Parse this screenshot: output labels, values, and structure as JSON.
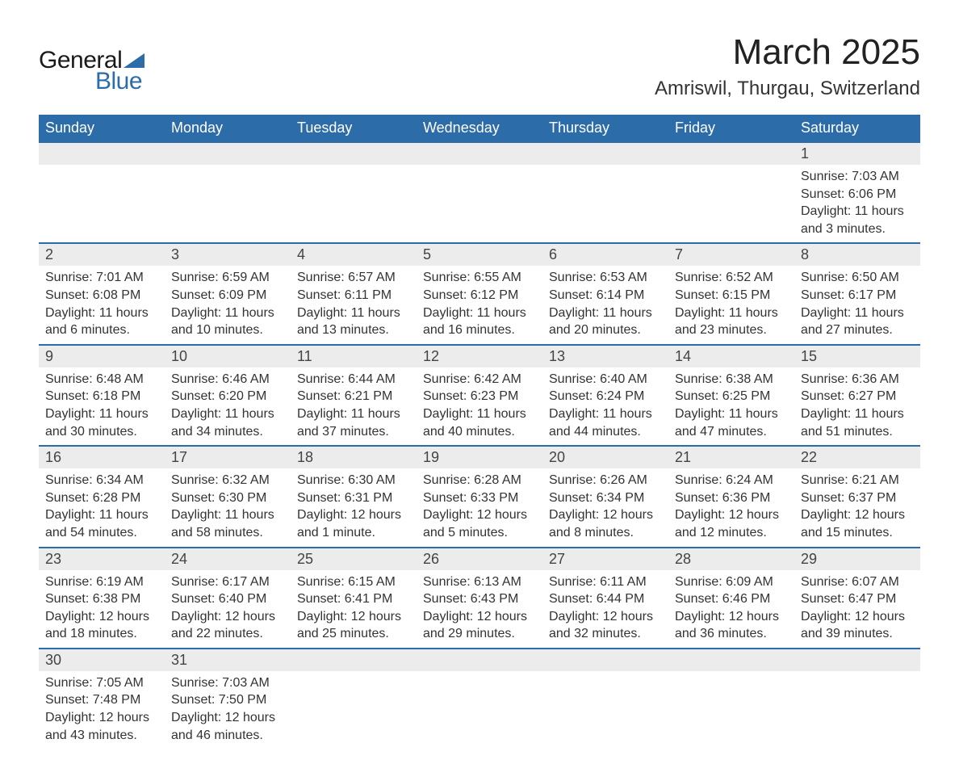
{
  "logo": {
    "text1": "General",
    "text2": "Blue",
    "shape_color": "#2c6ca8"
  },
  "title": "March 2025",
  "location": "Amriswil, Thurgau, Switzerland",
  "colors": {
    "header_bg": "#2c6ca8",
    "header_text": "#ffffff",
    "daynum_bg": "#ececec",
    "row_divider": "#2c6ca8",
    "body_text": "#333333"
  },
  "typography": {
    "title_fontsize": 44,
    "location_fontsize": 24,
    "dayname_fontsize": 18,
    "daynum_fontsize": 18,
    "detail_fontsize": 16
  },
  "daynames": [
    "Sunday",
    "Monday",
    "Tuesday",
    "Wednesday",
    "Thursday",
    "Friday",
    "Saturday"
  ],
  "weeks": [
    [
      null,
      null,
      null,
      null,
      null,
      null,
      {
        "n": "1",
        "sr": "Sunrise: 7:03 AM",
        "ss": "Sunset: 6:06 PM",
        "d1": "Daylight: 11 hours",
        "d2": "and 3 minutes."
      }
    ],
    [
      {
        "n": "2",
        "sr": "Sunrise: 7:01 AM",
        "ss": "Sunset: 6:08 PM",
        "d1": "Daylight: 11 hours",
        "d2": "and 6 minutes."
      },
      {
        "n": "3",
        "sr": "Sunrise: 6:59 AM",
        "ss": "Sunset: 6:09 PM",
        "d1": "Daylight: 11 hours",
        "d2": "and 10 minutes."
      },
      {
        "n": "4",
        "sr": "Sunrise: 6:57 AM",
        "ss": "Sunset: 6:11 PM",
        "d1": "Daylight: 11 hours",
        "d2": "and 13 minutes."
      },
      {
        "n": "5",
        "sr": "Sunrise: 6:55 AM",
        "ss": "Sunset: 6:12 PM",
        "d1": "Daylight: 11 hours",
        "d2": "and 16 minutes."
      },
      {
        "n": "6",
        "sr": "Sunrise: 6:53 AM",
        "ss": "Sunset: 6:14 PM",
        "d1": "Daylight: 11 hours",
        "d2": "and 20 minutes."
      },
      {
        "n": "7",
        "sr": "Sunrise: 6:52 AM",
        "ss": "Sunset: 6:15 PM",
        "d1": "Daylight: 11 hours",
        "d2": "and 23 minutes."
      },
      {
        "n": "8",
        "sr": "Sunrise: 6:50 AM",
        "ss": "Sunset: 6:17 PM",
        "d1": "Daylight: 11 hours",
        "d2": "and 27 minutes."
      }
    ],
    [
      {
        "n": "9",
        "sr": "Sunrise: 6:48 AM",
        "ss": "Sunset: 6:18 PM",
        "d1": "Daylight: 11 hours",
        "d2": "and 30 minutes."
      },
      {
        "n": "10",
        "sr": "Sunrise: 6:46 AM",
        "ss": "Sunset: 6:20 PM",
        "d1": "Daylight: 11 hours",
        "d2": "and 34 minutes."
      },
      {
        "n": "11",
        "sr": "Sunrise: 6:44 AM",
        "ss": "Sunset: 6:21 PM",
        "d1": "Daylight: 11 hours",
        "d2": "and 37 minutes."
      },
      {
        "n": "12",
        "sr": "Sunrise: 6:42 AM",
        "ss": "Sunset: 6:23 PM",
        "d1": "Daylight: 11 hours",
        "d2": "and 40 minutes."
      },
      {
        "n": "13",
        "sr": "Sunrise: 6:40 AM",
        "ss": "Sunset: 6:24 PM",
        "d1": "Daylight: 11 hours",
        "d2": "and 44 minutes."
      },
      {
        "n": "14",
        "sr": "Sunrise: 6:38 AM",
        "ss": "Sunset: 6:25 PM",
        "d1": "Daylight: 11 hours",
        "d2": "and 47 minutes."
      },
      {
        "n": "15",
        "sr": "Sunrise: 6:36 AM",
        "ss": "Sunset: 6:27 PM",
        "d1": "Daylight: 11 hours",
        "d2": "and 51 minutes."
      }
    ],
    [
      {
        "n": "16",
        "sr": "Sunrise: 6:34 AM",
        "ss": "Sunset: 6:28 PM",
        "d1": "Daylight: 11 hours",
        "d2": "and 54 minutes."
      },
      {
        "n": "17",
        "sr": "Sunrise: 6:32 AM",
        "ss": "Sunset: 6:30 PM",
        "d1": "Daylight: 11 hours",
        "d2": "and 58 minutes."
      },
      {
        "n": "18",
        "sr": "Sunrise: 6:30 AM",
        "ss": "Sunset: 6:31 PM",
        "d1": "Daylight: 12 hours",
        "d2": "and 1 minute."
      },
      {
        "n": "19",
        "sr": "Sunrise: 6:28 AM",
        "ss": "Sunset: 6:33 PM",
        "d1": "Daylight: 12 hours",
        "d2": "and 5 minutes."
      },
      {
        "n": "20",
        "sr": "Sunrise: 6:26 AM",
        "ss": "Sunset: 6:34 PM",
        "d1": "Daylight: 12 hours",
        "d2": "and 8 minutes."
      },
      {
        "n": "21",
        "sr": "Sunrise: 6:24 AM",
        "ss": "Sunset: 6:36 PM",
        "d1": "Daylight: 12 hours",
        "d2": "and 12 minutes."
      },
      {
        "n": "22",
        "sr": "Sunrise: 6:21 AM",
        "ss": "Sunset: 6:37 PM",
        "d1": "Daylight: 12 hours",
        "d2": "and 15 minutes."
      }
    ],
    [
      {
        "n": "23",
        "sr": "Sunrise: 6:19 AM",
        "ss": "Sunset: 6:38 PM",
        "d1": "Daylight: 12 hours",
        "d2": "and 18 minutes."
      },
      {
        "n": "24",
        "sr": "Sunrise: 6:17 AM",
        "ss": "Sunset: 6:40 PM",
        "d1": "Daylight: 12 hours",
        "d2": "and 22 minutes."
      },
      {
        "n": "25",
        "sr": "Sunrise: 6:15 AM",
        "ss": "Sunset: 6:41 PM",
        "d1": "Daylight: 12 hours",
        "d2": "and 25 minutes."
      },
      {
        "n": "26",
        "sr": "Sunrise: 6:13 AM",
        "ss": "Sunset: 6:43 PM",
        "d1": "Daylight: 12 hours",
        "d2": "and 29 minutes."
      },
      {
        "n": "27",
        "sr": "Sunrise: 6:11 AM",
        "ss": "Sunset: 6:44 PM",
        "d1": "Daylight: 12 hours",
        "d2": "and 32 minutes."
      },
      {
        "n": "28",
        "sr": "Sunrise: 6:09 AM",
        "ss": "Sunset: 6:46 PM",
        "d1": "Daylight: 12 hours",
        "d2": "and 36 minutes."
      },
      {
        "n": "29",
        "sr": "Sunrise: 6:07 AM",
        "ss": "Sunset: 6:47 PM",
        "d1": "Daylight: 12 hours",
        "d2": "and 39 minutes."
      }
    ],
    [
      {
        "n": "30",
        "sr": "Sunrise: 7:05 AM",
        "ss": "Sunset: 7:48 PM",
        "d1": "Daylight: 12 hours",
        "d2": "and 43 minutes."
      },
      {
        "n": "31",
        "sr": "Sunrise: 7:03 AM",
        "ss": "Sunset: 7:50 PM",
        "d1": "Daylight: 12 hours",
        "d2": "and 46 minutes."
      },
      null,
      null,
      null,
      null,
      null
    ]
  ]
}
